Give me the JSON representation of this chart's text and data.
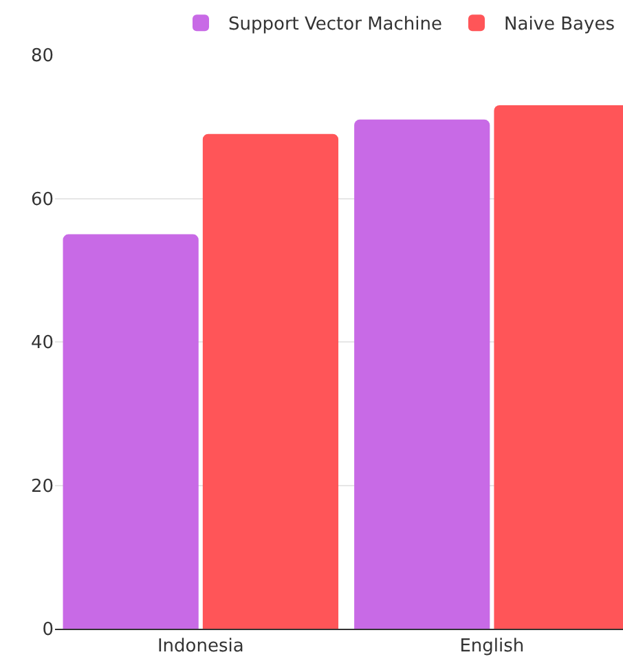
{
  "chart_data": {
    "type": "bar",
    "categories": [
      "Indonesia",
      "English"
    ],
    "series": [
      {
        "name": "Support Vector Machine",
        "color": "#c86ae6",
        "values": [
          55,
          71
        ]
      },
      {
        "name": "Naive Bayes",
        "color": "#ff5558",
        "values": [
          69,
          73
        ]
      }
    ],
    "ylim": [
      0,
      80
    ],
    "yticks": [
      0,
      20,
      40,
      60,
      80
    ],
    "grid": "y",
    "legend": "top right"
  }
}
